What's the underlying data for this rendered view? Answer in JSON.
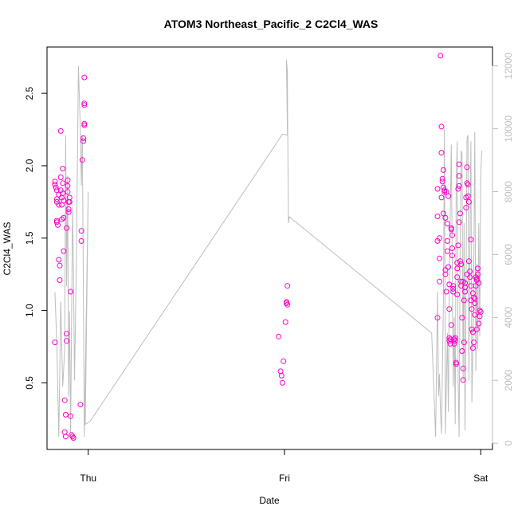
{
  "chart_data": {
    "type": "scatter",
    "title": "ATOM3 Northeast_Pacific_2 C2Cl4_WAS",
    "xlabel": "Date",
    "ylabel": "C2Cl4_WAS",
    "x_ticks": [
      {
        "label": "Thu",
        "day": 0
      },
      {
        "label": "Fri",
        "day": 1
      },
      {
        "label": "Sat",
        "day": 2
      }
    ],
    "y_ticks": [
      "0.5",
      "1.0",
      "1.5",
      "2.0",
      "2.5"
    ],
    "y_tick_values": [
      0.5,
      1.0,
      1.5,
      2.0,
      2.5
    ],
    "right_ticks": [
      "0",
      "2000",
      "4000",
      "6000",
      "8000",
      "10000",
      "12000"
    ],
    "right_tick_values": [
      0,
      2000,
      4000,
      6000,
      8000,
      10000,
      12000
    ],
    "xlim_days": [
      -0.21,
      2.06
    ],
    "ylim": [
      0.04,
      2.82
    ],
    "right_ylim": [
      -200,
      12600
    ],
    "point_color": "#ff00cc",
    "line_color": "#bdbdbd",
    "series": [
      {
        "values_day_y": [
          [
            -0.17,
            0.78
          ],
          [
            -0.17,
            1.87
          ],
          [
            -0.17,
            1.89
          ],
          [
            -0.165,
            1.85
          ],
          [
            -0.16,
            1.83
          ],
          [
            -0.16,
            1.77
          ],
          [
            -0.16,
            1.75
          ],
          [
            -0.16,
            1.62
          ],
          [
            -0.16,
            1.61
          ],
          [
            -0.155,
            1.59
          ],
          [
            -0.15,
            1.73
          ],
          [
            -0.15,
            1.8
          ],
          [
            -0.15,
            1.35
          ],
          [
            -0.145,
            1.21
          ],
          [
            -0.145,
            1.31
          ],
          [
            -0.14,
            2.24
          ],
          [
            -0.14,
            1.83
          ],
          [
            -0.14,
            1.92
          ],
          [
            -0.135,
            1.78
          ],
          [
            -0.135,
            1.73
          ],
          [
            -0.135,
            1.63
          ],
          [
            -0.13,
            1.98
          ],
          [
            -0.13,
            1.88
          ],
          [
            -0.13,
            1.81
          ],
          [
            -0.125,
            1.76
          ],
          [
            -0.125,
            1.64
          ],
          [
            -0.125,
            1.41
          ],
          [
            -0.12,
            0.38
          ],
          [
            -0.12,
            0.16
          ],
          [
            -0.115,
            0.13
          ],
          [
            -0.115,
            0.28
          ],
          [
            -0.11,
            0.79
          ],
          [
            -0.11,
            0.84
          ],
          [
            -0.11,
            1.57
          ],
          [
            -0.105,
            1.9
          ],
          [
            -0.105,
            1.86
          ],
          [
            -0.105,
            1.82
          ],
          [
            -0.1,
            1.75
          ],
          [
            -0.1,
            1.7
          ],
          [
            -0.1,
            1.68
          ],
          [
            -0.095,
            1.78
          ],
          [
            -0.095,
            1.75
          ],
          [
            -0.09,
            1.13
          ],
          [
            -0.09,
            0.27
          ],
          [
            -0.085,
            0.14
          ],
          [
            -0.08,
            0.13
          ],
          [
            -0.075,
            0.12
          ],
          [
            -0.04,
            0.35
          ],
          [
            -0.035,
            1.48
          ],
          [
            -0.035,
            1.55
          ],
          [
            -0.03,
            2.04
          ],
          [
            -0.025,
            2.19
          ],
          [
            -0.025,
            2.17
          ],
          [
            -0.02,
            2.28
          ],
          [
            -0.02,
            2.29
          ],
          [
            -0.02,
            2.42
          ],
          [
            -0.02,
            2.43
          ],
          [
            -0.02,
            2.61
          ],
          [
            0.97,
            0.82
          ],
          [
            0.98,
            0.58
          ],
          [
            0.985,
            0.55
          ],
          [
            0.99,
            0.5
          ],
          [
            0.995,
            0.65
          ],
          [
            1.005,
            0.92
          ],
          [
            1.01,
            1.05
          ],
          [
            1.01,
            1.06
          ],
          [
            1.015,
            1.04
          ],
          [
            1.015,
            1.17
          ],
          [
            1.78,
            1.84
          ],
          [
            1.78,
            1.65
          ],
          [
            1.78,
            1.48
          ],
          [
            1.78,
            0.95
          ],
          [
            1.79,
            1.36
          ],
          [
            1.79,
            1.5
          ],
          [
            1.79,
            1.2
          ],
          [
            1.795,
            2.76
          ],
          [
            1.8,
            2.27
          ],
          [
            1.8,
            2.09
          ],
          [
            1.8,
            1.78
          ],
          [
            1.805,
            1.89
          ],
          [
            1.805,
            1.91
          ],
          [
            1.81,
            1.97
          ],
          [
            1.81,
            1.67
          ],
          [
            1.81,
            1.85
          ],
          [
            1.815,
            1.82
          ],
          [
            1.815,
            1.83
          ],
          [
            1.82,
            1.64
          ],
          [
            1.82,
            1.28
          ],
          [
            1.82,
            1.25
          ],
          [
            1.825,
            1.82
          ],
          [
            1.825,
            1.13
          ],
          [
            1.83,
            1.6
          ],
          [
            1.83,
            1.48
          ],
          [
            1.83,
            1.41
          ],
          [
            1.835,
            1.79
          ],
          [
            1.835,
            1.3
          ],
          [
            1.84,
            1.18
          ],
          [
            1.84,
            1.01
          ],
          [
            1.84,
            0.81
          ],
          [
            1.84,
            0.79
          ],
          [
            1.845,
            0.8
          ],
          [
            1.845,
            0.77
          ],
          [
            1.85,
            0.9
          ],
          [
            1.85,
            1.56
          ],
          [
            1.85,
            1.57
          ],
          [
            1.855,
            1.52
          ],
          [
            1.855,
            1.43
          ],
          [
            1.855,
            1.38
          ],
          [
            1.86,
            1.17
          ],
          [
            1.86,
            1.13
          ],
          [
            1.86,
            1.15
          ],
          [
            1.865,
            0.77
          ],
          [
            1.865,
            0.8
          ],
          [
            1.87,
            0.79
          ],
          [
            1.87,
            0.81
          ],
          [
            1.875,
            0.63
          ],
          [
            1.875,
            0.64
          ],
          [
            1.88,
            1.23
          ],
          [
            1.88,
            1.29
          ],
          [
            1.88,
            1.33
          ],
          [
            1.885,
            1.45
          ],
          [
            1.885,
            1.84
          ],
          [
            1.89,
            1.86
          ],
          [
            1.89,
            2.01
          ],
          [
            1.89,
            1.93
          ],
          [
            1.895,
            1.67
          ],
          [
            1.895,
            1.34
          ],
          [
            1.9,
            1.2
          ],
          [
            1.9,
            1.17
          ],
          [
            1.905,
            0.95
          ],
          [
            1.905,
            0.72
          ],
          [
            1.91,
            0.6
          ],
          [
            1.91,
            0.52
          ],
          [
            1.915,
            0.78
          ],
          [
            1.915,
            1.07
          ],
          [
            1.92,
            1.16
          ],
          [
            1.92,
            1.19
          ],
          [
            1.925,
            1.71
          ],
          [
            1.925,
            1.78
          ],
          [
            1.93,
            1.88
          ],
          [
            1.93,
            1.99
          ],
          [
            1.935,
            1.87
          ],
          [
            1.935,
            1.79
          ],
          [
            1.94,
            1.75
          ],
          [
            1.94,
            1.34
          ],
          [
            1.945,
            1.23
          ],
          [
            1.945,
            1.27
          ],
          [
            1.95,
            1.17
          ],
          [
            1.95,
            1.07
          ],
          [
            1.955,
            1.01
          ],
          [
            1.955,
            0.87
          ],
          [
            1.96,
            0.85
          ],
          [
            1.96,
            0.74
          ],
          [
            1.965,
            0.78
          ],
          [
            1.965,
            1.09
          ],
          [
            1.97,
            1.08
          ],
          [
            1.97,
            1.05
          ],
          [
            1.975,
            1.17
          ],
          [
            1.975,
            1.23
          ],
          [
            1.98,
            1.22
          ],
          [
            1.98,
            1.21
          ],
          [
            1.985,
            1.29
          ],
          [
            1.985,
            1.25
          ],
          [
            1.99,
            1.19
          ],
          [
            1.99,
            0.91
          ],
          [
            1.995,
            0.96
          ],
          [
            1.995,
            1.0
          ],
          [
            2.0,
            0.99
          ],
          [
            1.98,
            0.87
          ],
          [
            1.97,
            0.97
          ],
          [
            1.96,
            1.12
          ],
          [
            1.95,
            1.49
          ],
          [
            1.93,
            1.25
          ],
          [
            1.92,
            1.13
          ],
          [
            1.91,
            1.2
          ],
          [
            1.9,
            1.32
          ],
          [
            1.89,
            1.61
          ],
          [
            1.88,
            1.11
          ]
        ]
      },
      {
        "right_axis": true,
        "points_day_value": [
          [
            -0.17,
            4800
          ],
          [
            -0.16,
            3200
          ],
          [
            -0.15,
            200
          ],
          [
            -0.14,
            4500
          ],
          [
            -0.13,
            1800
          ],
          [
            -0.12,
            3000
          ],
          [
            -0.115,
            9800
          ],
          [
            -0.11,
            5000
          ],
          [
            -0.105,
            8500
          ],
          [
            -0.1,
            1500
          ],
          [
            -0.095,
            4200
          ],
          [
            -0.09,
            300
          ],
          [
            -0.085,
            3800
          ],
          [
            -0.08,
            7500
          ],
          [
            -0.075,
            5500
          ],
          [
            -0.07,
            2000
          ],
          [
            -0.06,
            5900
          ],
          [
            -0.05,
            12000
          ],
          [
            -0.04,
            9900
          ],
          [
            -0.035,
            8200
          ],
          [
            -0.03,
            9800
          ],
          [
            -0.02,
            200
          ],
          [
            -0.01,
            4200
          ],
          [
            0.0,
            8000
          ],
          [
            -0.015,
            600
          ],
          [
            0.01,
            700
          ],
          [
            0.99,
            9830
          ],
          [
            1.015,
            9800
          ],
          [
            1.01,
            12200
          ],
          [
            1.015,
            11800
          ],
          [
            1.015,
            11200
          ],
          [
            1.02,
            7000
          ],
          [
            1.025,
            7200
          ],
          [
            1.75,
            3500
          ],
          [
            1.77,
            200
          ],
          [
            1.78,
            4800
          ],
          [
            1.785,
            1500
          ],
          [
            1.79,
            2200
          ],
          [
            1.795,
            1000
          ],
          [
            1.8,
            300
          ],
          [
            1.81,
            4500
          ],
          [
            1.815,
            10000
          ],
          [
            1.82,
            300
          ],
          [
            1.83,
            3500
          ],
          [
            1.835,
            1000
          ],
          [
            1.84,
            5200
          ],
          [
            1.85,
            9500
          ],
          [
            1.86,
            1800
          ],
          [
            1.865,
            4000
          ],
          [
            1.87,
            600
          ],
          [
            1.875,
            8000
          ],
          [
            1.88,
            9600
          ],
          [
            1.885,
            2000
          ],
          [
            1.89,
            200
          ],
          [
            1.895,
            6100
          ],
          [
            1.9,
            9300
          ],
          [
            1.905,
            9200
          ],
          [
            1.91,
            2000
          ],
          [
            1.915,
            7000
          ],
          [
            1.92,
            400
          ],
          [
            1.925,
            5000
          ],
          [
            1.93,
            9700
          ],
          [
            1.935,
            9800
          ],
          [
            1.94,
            2000
          ],
          [
            1.945,
            6600
          ],
          [
            1.95,
            9600
          ],
          [
            1.955,
            1300
          ],
          [
            1.96,
            3000
          ],
          [
            1.965,
            5800
          ],
          [
            1.97,
            9900
          ],
          [
            1.975,
            2300
          ],
          [
            1.98,
            5700
          ],
          [
            1.985,
            3000
          ],
          [
            1.99,
            7000
          ],
          [
            1.995,
            3400
          ],
          [
            2.0,
            8500
          ],
          [
            2.005,
            9300
          ]
        ]
      }
    ]
  }
}
